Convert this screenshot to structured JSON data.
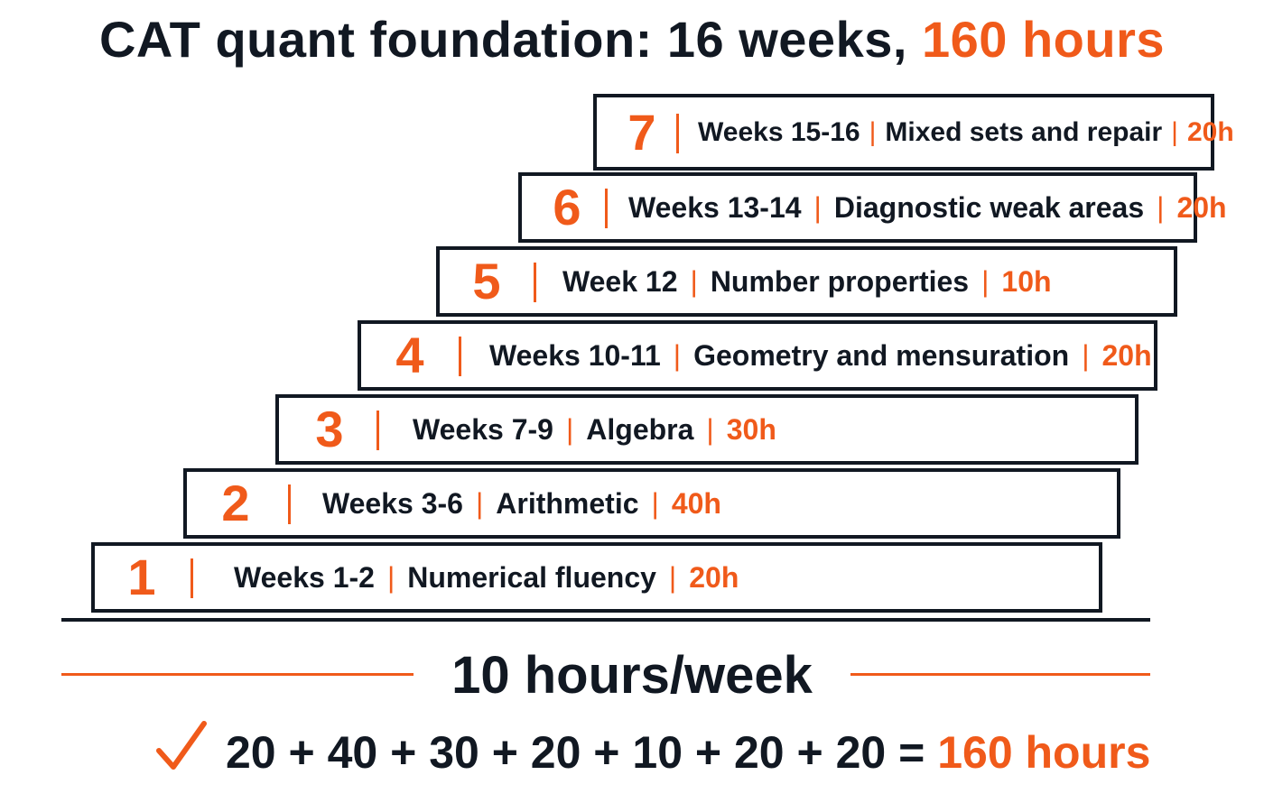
{
  "title": {
    "prefix": "CAT quant foundation: 16 weeks,",
    "highlight": "160 hours"
  },
  "steps": [
    {
      "num": "1",
      "weeks": "Weeks 1-2",
      "topic": "Numerical fluency",
      "hours": "20h"
    },
    {
      "num": "2",
      "weeks": "Weeks 3-6",
      "topic": "Arithmetic",
      "hours": "40h"
    },
    {
      "num": "3",
      "weeks": "Weeks 7-9",
      "topic": "Algebra",
      "hours": "30h"
    },
    {
      "num": "4",
      "weeks": "Weeks 10-11",
      "topic": "Geometry and mensuration",
      "hours": "20h"
    },
    {
      "num": "5",
      "weeks": "Week 12",
      "topic": "Number properties",
      "hours": "10h"
    },
    {
      "num": "6",
      "weeks": "Weeks 13-14",
      "topic": "Diagnostic weak areas",
      "hours": "20h"
    },
    {
      "num": "7",
      "weeks": "Weeks 15-16",
      "topic": "Mixed sets and repair",
      "hours": "20h"
    }
  ],
  "rate": "10 hours/week",
  "check_icon": "checkmark-icon",
  "equation": {
    "sum": "20 + 40 + 30 + 20 + 10 + 20 + 20 =",
    "total": "160 hours"
  },
  "colors": {
    "accent": "#f05a1a",
    "ink": "#111822"
  }
}
